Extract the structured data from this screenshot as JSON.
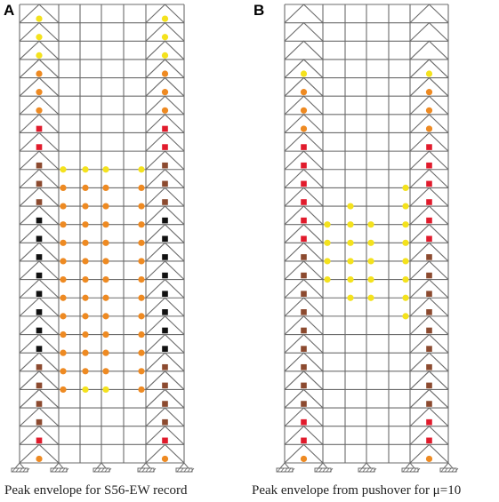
{
  "panels": [
    {
      "letter": "A",
      "caption": "Peak envelope for S56-EW record",
      "frame_color": "#6b6b6b",
      "hinges": [
        {
          "kind": "brace",
          "dot": "node",
          "side": "left",
          "story": 24,
          "color": "yellow"
        },
        {
          "kind": "brace",
          "dot": "node",
          "side": "right",
          "story": 24,
          "color": "yellow"
        },
        {
          "kind": "brace",
          "dot": "node",
          "side": "left",
          "story": 23,
          "color": "yellow"
        },
        {
          "kind": "brace",
          "dot": "node",
          "side": "right",
          "story": 23,
          "color": "yellow"
        },
        {
          "kind": "brace",
          "dot": "node",
          "side": "left",
          "story": 22,
          "color": "yellow"
        },
        {
          "kind": "brace",
          "dot": "node",
          "side": "right",
          "story": 22,
          "color": "yellow"
        },
        {
          "kind": "brace",
          "dot": "node",
          "side": "left",
          "story": 21,
          "color": "orange"
        },
        {
          "kind": "brace",
          "dot": "node",
          "side": "right",
          "story": 21,
          "color": "orange"
        },
        {
          "kind": "brace",
          "dot": "node",
          "side": "left",
          "story": 20,
          "color": "orange"
        },
        {
          "kind": "brace",
          "dot": "node",
          "side": "right",
          "story": 20,
          "color": "orange"
        },
        {
          "kind": "brace",
          "dot": "node",
          "side": "left",
          "story": 19,
          "color": "orange"
        },
        {
          "kind": "brace",
          "dot": "node",
          "side": "right",
          "story": 19,
          "color": "orange"
        },
        {
          "kind": "brace",
          "dot": "node",
          "side": "left",
          "story": 18,
          "color": "red"
        },
        {
          "kind": "brace",
          "dot": "node",
          "side": "right",
          "story": 18,
          "color": "red"
        },
        {
          "kind": "brace",
          "dot": "node",
          "side": "left",
          "story": 17,
          "color": "red"
        },
        {
          "kind": "brace",
          "dot": "node",
          "side": "right",
          "story": 17,
          "color": "red"
        },
        {
          "kind": "brace",
          "dot": "node",
          "side": "left",
          "story": 16,
          "color": "brown"
        },
        {
          "kind": "brace",
          "dot": "node",
          "side": "right",
          "story": 16,
          "color": "brown"
        },
        {
          "kind": "brace",
          "dot": "node",
          "side": "left",
          "story": 15,
          "color": "brown"
        },
        {
          "kind": "brace",
          "dot": "node",
          "side": "right",
          "story": 15,
          "color": "brown"
        },
        {
          "kind": "brace",
          "dot": "node",
          "side": "left",
          "story": 14,
          "color": "brown"
        },
        {
          "kind": "brace",
          "dot": "node",
          "side": "right",
          "story": 14,
          "color": "brown"
        },
        {
          "kind": "brace",
          "dot": "node",
          "side": "left",
          "story": 13,
          "color": "black"
        },
        {
          "kind": "brace",
          "dot": "node",
          "side": "right",
          "story": 13,
          "color": "black"
        },
        {
          "kind": "brace",
          "dot": "node",
          "side": "left",
          "story": 12,
          "color": "black"
        },
        {
          "kind": "brace",
          "dot": "node",
          "side": "right",
          "story": 12,
          "color": "black"
        },
        {
          "kind": "brace",
          "dot": "node",
          "side": "left",
          "story": 11,
          "color": "black"
        },
        {
          "kind": "brace",
          "dot": "node",
          "side": "right",
          "story": 11,
          "color": "black"
        },
        {
          "kind": "brace",
          "dot": "node",
          "side": "left",
          "story": 10,
          "color": "black"
        },
        {
          "kind": "brace",
          "dot": "node",
          "side": "right",
          "story": 10,
          "color": "black"
        },
        {
          "kind": "brace",
          "dot": "node",
          "side": "left",
          "story": 9,
          "color": "black"
        },
        {
          "kind": "brace",
          "dot": "node",
          "side": "right",
          "story": 9,
          "color": "black"
        },
        {
          "kind": "brace",
          "dot": "node",
          "side": "left",
          "story": 8,
          "color": "black"
        },
        {
          "kind": "brace",
          "dot": "node",
          "side": "right",
          "story": 8,
          "color": "black"
        },
        {
          "kind": "brace",
          "dot": "node",
          "side": "left",
          "story": 7,
          "color": "black"
        },
        {
          "kind": "brace",
          "dot": "node",
          "side": "right",
          "story": 7,
          "color": "black"
        },
        {
          "kind": "brace",
          "dot": "node",
          "side": "left",
          "story": 6,
          "color": "black"
        },
        {
          "kind": "brace",
          "dot": "node",
          "side": "right",
          "story": 6,
          "color": "black"
        },
        {
          "kind": "brace",
          "dot": "node",
          "side": "left",
          "story": 5,
          "color": "brown"
        },
        {
          "kind": "brace",
          "dot": "node",
          "side": "right",
          "story": 5,
          "color": "brown"
        },
        {
          "kind": "brace",
          "dot": "node",
          "side": "left",
          "story": 4,
          "color": "brown"
        },
        {
          "kind": "brace",
          "dot": "node",
          "side": "right",
          "story": 4,
          "color": "brown"
        },
        {
          "kind": "brace",
          "dot": "node",
          "side": "left",
          "story": 3,
          "color": "brown"
        },
        {
          "kind": "brace",
          "dot": "node",
          "side": "right",
          "story": 3,
          "color": "brown"
        },
        {
          "kind": "brace",
          "dot": "node",
          "side": "left",
          "story": 2,
          "color": "brown"
        },
        {
          "kind": "brace",
          "dot": "node",
          "side": "right",
          "story": 2,
          "color": "brown"
        },
        {
          "kind": "brace",
          "dot": "node",
          "side": "left",
          "story": 1,
          "color": "red"
        },
        {
          "kind": "brace",
          "dot": "node",
          "side": "right",
          "story": 1,
          "color": "red"
        },
        {
          "kind": "brace",
          "dot": "node",
          "side": "left",
          "story": 0,
          "color": "orange"
        },
        {
          "kind": "brace",
          "dot": "node",
          "side": "right",
          "story": 0,
          "color": "orange"
        },
        {
          "kind": "beam",
          "story": 16,
          "colors": [
            "yellow",
            "yellow",
            "yellow",
            "yellow"
          ]
        },
        {
          "kind": "beam",
          "story": 15,
          "colors": [
            "orange",
            "orange",
            "orange",
            "orange"
          ]
        },
        {
          "kind": "beam",
          "story": 14,
          "colors": [
            "orange",
            "orange",
            "orange",
            "orange"
          ]
        },
        {
          "kind": "beam",
          "story": 13,
          "colors": [
            "orange",
            "orange",
            "orange",
            "orange"
          ]
        },
        {
          "kind": "beam",
          "story": 12,
          "colors": [
            "orange",
            "orange",
            "orange",
            "orange"
          ]
        },
        {
          "kind": "beam",
          "story": 11,
          "colors": [
            "orange",
            "orange",
            "orange",
            "orange"
          ]
        },
        {
          "kind": "beam",
          "story": 10,
          "colors": [
            "orange",
            "orange",
            "orange",
            "orange"
          ]
        },
        {
          "kind": "beam",
          "story": 9,
          "colors": [
            "orange",
            "orange",
            "orange",
            "orange"
          ]
        },
        {
          "kind": "beam",
          "story": 8,
          "colors": [
            "orange",
            "orange",
            "orange",
            "orange"
          ]
        },
        {
          "kind": "beam",
          "story": 7,
          "colors": [
            "orange",
            "orange",
            "orange",
            "orange"
          ]
        },
        {
          "kind": "beam",
          "story": 6,
          "colors": [
            "orange",
            "orange",
            "orange",
            "orange"
          ]
        },
        {
          "kind": "beam",
          "story": 5,
          "colors": [
            "orange",
            "orange",
            "orange",
            "orange"
          ]
        },
        {
          "kind": "beam",
          "story": 4,
          "colors": [
            "orange",
            "yellow",
            "yellow",
            "orange"
          ]
        }
      ]
    },
    {
      "letter": "B",
      "caption": "Peak envelope from pushover for μ=10",
      "frame_color": "#6b6b6b",
      "hinges": [
        {
          "kind": "brace",
          "dot": "node",
          "side": "left",
          "story": 21,
          "color": "yellow"
        },
        {
          "kind": "brace",
          "dot": "node",
          "side": "right",
          "story": 21,
          "color": "yellow"
        },
        {
          "kind": "brace",
          "dot": "node",
          "side": "left",
          "story": 20,
          "color": "orange"
        },
        {
          "kind": "brace",
          "dot": "node",
          "side": "right",
          "story": 20,
          "color": "orange"
        },
        {
          "kind": "brace",
          "dot": "node",
          "side": "left",
          "story": 19,
          "color": "orange"
        },
        {
          "kind": "brace",
          "dot": "node",
          "side": "right",
          "story": 19,
          "color": "orange"
        },
        {
          "kind": "brace",
          "dot": "node",
          "side": "left",
          "story": 18,
          "color": "orange"
        },
        {
          "kind": "brace",
          "dot": "node",
          "side": "right",
          "story": 18,
          "color": "orange"
        },
        {
          "kind": "brace",
          "dot": "node",
          "side": "left",
          "story": 17,
          "color": "red"
        },
        {
          "kind": "brace",
          "dot": "node",
          "side": "right",
          "story": 17,
          "color": "red"
        },
        {
          "kind": "brace",
          "dot": "node",
          "side": "left",
          "story": 16,
          "color": "red"
        },
        {
          "kind": "brace",
          "dot": "node",
          "side": "right",
          "story": 16,
          "color": "red"
        },
        {
          "kind": "brace",
          "dot": "node",
          "side": "left",
          "story": 15,
          "color": "red"
        },
        {
          "kind": "brace",
          "dot": "node",
          "side": "right",
          "story": 15,
          "color": "red"
        },
        {
          "kind": "brace",
          "dot": "node",
          "side": "left",
          "story": 14,
          "color": "red"
        },
        {
          "kind": "brace",
          "dot": "node",
          "side": "right",
          "story": 14,
          "color": "red"
        },
        {
          "kind": "brace",
          "dot": "node",
          "side": "left",
          "story": 13,
          "color": "red"
        },
        {
          "kind": "brace",
          "dot": "node",
          "side": "right",
          "story": 13,
          "color": "red"
        },
        {
          "kind": "brace",
          "dot": "node",
          "side": "left",
          "story": 12,
          "color": "red"
        },
        {
          "kind": "brace",
          "dot": "node",
          "side": "right",
          "story": 12,
          "color": "red"
        },
        {
          "kind": "brace",
          "dot": "node",
          "side": "left",
          "story": 11,
          "color": "brown"
        },
        {
          "kind": "brace",
          "dot": "node",
          "side": "right",
          "story": 11,
          "color": "brown"
        },
        {
          "kind": "brace",
          "dot": "node",
          "side": "left",
          "story": 10,
          "color": "brown"
        },
        {
          "kind": "brace",
          "dot": "node",
          "side": "right",
          "story": 10,
          "color": "brown"
        },
        {
          "kind": "brace",
          "dot": "node",
          "side": "left",
          "story": 9,
          "color": "brown"
        },
        {
          "kind": "brace",
          "dot": "node",
          "side": "right",
          "story": 9,
          "color": "brown"
        },
        {
          "kind": "brace",
          "dot": "node",
          "side": "left",
          "story": 8,
          "color": "brown"
        },
        {
          "kind": "brace",
          "dot": "node",
          "side": "right",
          "story": 8,
          "color": "brown"
        },
        {
          "kind": "brace",
          "dot": "node",
          "side": "left",
          "story": 7,
          "color": "brown"
        },
        {
          "kind": "brace",
          "dot": "node",
          "side": "right",
          "story": 7,
          "color": "brown"
        },
        {
          "kind": "brace",
          "dot": "node",
          "side": "left",
          "story": 6,
          "color": "brown"
        },
        {
          "kind": "brace",
          "dot": "node",
          "side": "right",
          "story": 6,
          "color": "brown"
        },
        {
          "kind": "brace",
          "dot": "node",
          "side": "left",
          "story": 5,
          "color": "brown"
        },
        {
          "kind": "brace",
          "dot": "node",
          "side": "right",
          "story": 5,
          "color": "brown"
        },
        {
          "kind": "brace",
          "dot": "node",
          "side": "left",
          "story": 4,
          "color": "brown"
        },
        {
          "kind": "brace",
          "dot": "node",
          "side": "right",
          "story": 4,
          "color": "brown"
        },
        {
          "kind": "brace",
          "dot": "node",
          "side": "left",
          "story": 3,
          "color": "brown"
        },
        {
          "kind": "brace",
          "dot": "node",
          "side": "right",
          "story": 3,
          "color": "brown"
        },
        {
          "kind": "brace",
          "dot": "node",
          "side": "left",
          "story": 2,
          "color": "red"
        },
        {
          "kind": "brace",
          "dot": "node",
          "side": "right",
          "story": 2,
          "color": "red"
        },
        {
          "kind": "brace",
          "dot": "node",
          "side": "left",
          "story": 1,
          "color": "red"
        },
        {
          "kind": "brace",
          "dot": "node",
          "side": "right",
          "story": 1,
          "color": "red"
        },
        {
          "kind": "brace",
          "dot": "node",
          "side": "left",
          "story": 0,
          "color": "orange"
        },
        {
          "kind": "brace",
          "dot": "node",
          "side": "right",
          "story": 0,
          "color": "orange"
        },
        {
          "kind": "beam",
          "story": 15,
          "colors": [
            null,
            null,
            null,
            "yellow"
          ]
        },
        {
          "kind": "beam",
          "story": 14,
          "colors": [
            null,
            "yellow",
            null,
            "yellow"
          ]
        },
        {
          "kind": "beam",
          "story": 13,
          "colors": [
            "yellow",
            "yellow",
            "yellow",
            "yellow"
          ]
        },
        {
          "kind": "beam",
          "story": 12,
          "colors": [
            "yellow",
            "yellow",
            "yellow",
            "yellow"
          ]
        },
        {
          "kind": "beam",
          "story": 11,
          "colors": [
            "yellow",
            "yellow",
            "yellow",
            "yellow"
          ]
        },
        {
          "kind": "beam",
          "story": 10,
          "colors": [
            "yellow",
            "yellow",
            "yellow",
            "yellow"
          ]
        },
        {
          "kind": "beam",
          "story": 9,
          "colors": [
            null,
            "yellow",
            "yellow",
            "yellow"
          ]
        },
        {
          "kind": "beam",
          "story": 8,
          "colors": [
            null,
            null,
            null,
            "yellow"
          ]
        }
      ]
    }
  ],
  "colors": {
    "yellow": "#f4e21d",
    "orange": "#ee8a22",
    "red": "#e11b2c",
    "brown": "#8c4a2f",
    "black": "#111111"
  }
}
